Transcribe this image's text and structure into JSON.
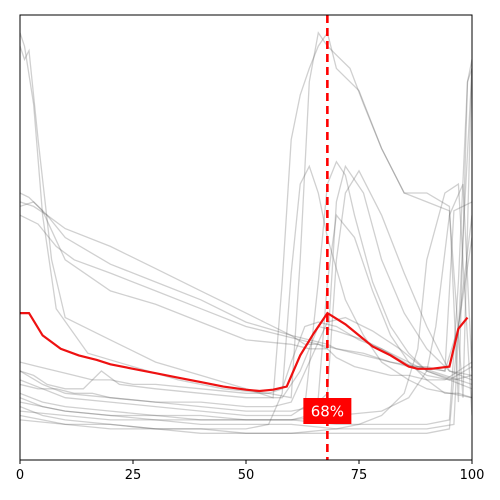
{
  "chart_data": {
    "type": "line",
    "title": "",
    "xlabel": "",
    "ylabel": "",
    "xlim": [
      0,
      100
    ],
    "ylim": [
      0,
      1
    ],
    "x_ticks": [
      "0",
      "25",
      "50",
      "75",
      "100"
    ],
    "y_ticks_visible": false,
    "grid": false,
    "legend": "none",
    "marker": {
      "x": 68,
      "label": "68%",
      "color": "#ff0000",
      "style": "dashed"
    },
    "highlight_series": {
      "color": "#ee1111",
      "x": [
        0,
        2,
        5,
        9,
        13,
        17,
        20,
        25,
        30,
        35,
        40,
        45,
        50,
        53,
        56,
        59,
        62,
        65,
        68,
        72,
        75,
        78,
        82,
        86,
        88,
        91,
        95,
        97,
        99
      ],
      "y": [
        0.33,
        0.33,
        0.28,
        0.25,
        0.235,
        0.225,
        0.215,
        0.205,
        0.195,
        0.185,
        0.175,
        0.165,
        0.158,
        0.155,
        0.158,
        0.165,
        0.235,
        0.285,
        0.33,
        0.305,
        0.28,
        0.255,
        0.235,
        0.21,
        0.205,
        0.205,
        0.21,
        0.295,
        0.32
      ]
    },
    "background_series_color": "#555555",
    "background_series": [
      {
        "x": [
          0,
          1,
          2,
          4,
          7,
          10,
          20,
          30,
          40,
          50,
          56,
          58,
          60,
          62,
          64,
          66,
          68,
          70,
          72,
          75,
          80,
          85,
          90,
          95,
          97,
          99,
          100
        ],
        "y": [
          0.93,
          0.9,
          0.92,
          0.72,
          0.45,
          0.32,
          0.27,
          0.22,
          0.19,
          0.16,
          0.14,
          0.4,
          0.72,
          0.82,
          0.88,
          0.93,
          0.96,
          0.88,
          0.86,
          0.83,
          0.7,
          0.6,
          0.6,
          0.57,
          0.13,
          0.85,
          0.88
        ]
      },
      {
        "x": [
          0,
          1,
          3,
          5,
          8,
          15,
          25,
          35,
          45,
          55,
          60,
          62,
          64,
          66,
          68,
          70,
          73,
          76,
          80,
          85,
          90,
          95,
          98,
          100
        ],
        "y": [
          0.96,
          0.93,
          0.8,
          0.55,
          0.34,
          0.24,
          0.21,
          0.18,
          0.16,
          0.15,
          0.14,
          0.45,
          0.85,
          0.96,
          0.93,
          0.91,
          0.88,
          0.8,
          0.7,
          0.6,
          0.58,
          0.56,
          0.14,
          0.9
        ]
      },
      {
        "x": [
          0,
          3,
          6,
          10,
          20,
          30,
          40,
          50,
          60,
          63,
          66,
          68,
          70,
          74,
          78,
          82,
          86,
          90,
          94,
          97,
          100
        ],
        "y": [
          0.58,
          0.57,
          0.55,
          0.52,
          0.48,
          0.43,
          0.38,
          0.33,
          0.28,
          0.26,
          0.26,
          0.25,
          0.23,
          0.21,
          0.2,
          0.19,
          0.19,
          0.18,
          0.18,
          0.2,
          0.22
        ]
      },
      {
        "x": [
          0,
          3,
          6,
          10,
          20,
          30,
          40,
          50,
          60,
          64,
          68,
          70,
          74,
          78,
          82,
          86,
          90,
          94,
          96,
          100
        ],
        "y": [
          0.57,
          0.58,
          0.55,
          0.5,
          0.44,
          0.4,
          0.36,
          0.31,
          0.28,
          0.27,
          0.26,
          0.25,
          0.24,
          0.23,
          0.22,
          0.21,
          0.21,
          0.2,
          0.56,
          0.58
        ]
      },
      {
        "x": [
          0,
          4,
          8,
          12,
          20,
          30,
          40,
          50,
          58,
          62,
          66,
          70,
          76,
          82,
          88,
          94,
          97,
          100
        ],
        "y": [
          0.55,
          0.53,
          0.48,
          0.45,
          0.42,
          0.38,
          0.34,
          0.3,
          0.28,
          0.27,
          0.26,
          0.25,
          0.24,
          0.22,
          0.21,
          0.2,
          0.3,
          0.55
        ]
      },
      {
        "x": [
          0,
          2,
          5,
          10,
          20,
          30,
          40,
          50,
          60,
          64,
          68,
          70,
          72,
          76,
          80,
          85,
          90,
          95,
          100
        ],
        "y": [
          0.6,
          0.59,
          0.56,
          0.45,
          0.38,
          0.35,
          0.31,
          0.27,
          0.26,
          0.25,
          0.25,
          0.58,
          0.66,
          0.6,
          0.45,
          0.33,
          0.25,
          0.2,
          0.19
        ]
      },
      {
        "x": [
          0,
          5,
          10,
          20,
          30,
          40,
          50,
          60,
          65,
          68,
          70,
          72,
          75,
          80,
          85,
          90,
          95,
          100
        ],
        "y": [
          0.2,
          0.17,
          0.15,
          0.14,
          0.13,
          0.12,
          0.11,
          0.11,
          0.12,
          0.15,
          0.45,
          0.6,
          0.65,
          0.55,
          0.42,
          0.3,
          0.2,
          0.18
        ]
      },
      {
        "x": [
          0,
          5,
          10,
          20,
          30,
          40,
          50,
          60,
          63,
          66,
          68,
          70,
          72,
          74,
          78,
          82,
          86,
          90,
          95,
          100
        ],
        "y": [
          0.18,
          0.16,
          0.14,
          0.13,
          0.12,
          0.11,
          0.1,
          0.1,
          0.12,
          0.4,
          0.62,
          0.67,
          0.64,
          0.55,
          0.4,
          0.3,
          0.24,
          0.2,
          0.18,
          0.16
        ]
      },
      {
        "x": [
          0,
          5,
          10,
          20,
          30,
          40,
          50,
          55,
          58,
          60,
          62,
          64,
          66,
          68,
          72,
          76,
          80,
          86,
          90,
          95,
          100
        ],
        "y": [
          0.12,
          0.1,
          0.09,
          0.08,
          0.07,
          0.07,
          0.07,
          0.08,
          0.15,
          0.42,
          0.62,
          0.66,
          0.6,
          0.5,
          0.36,
          0.28,
          0.22,
          0.18,
          0.16,
          0.15,
          0.14
        ]
      },
      {
        "x": [
          0,
          5,
          10,
          20,
          30,
          40,
          50,
          60,
          64,
          66,
          68,
          70,
          74,
          78,
          82,
          86,
          90,
          94,
          97,
          100
        ],
        "y": [
          0.15,
          0.13,
          0.12,
          0.11,
          0.1,
          0.1,
          0.09,
          0.09,
          0.1,
          0.14,
          0.4,
          0.55,
          0.5,
          0.38,
          0.28,
          0.22,
          0.18,
          0.15,
          0.15,
          0.14
        ]
      },
      {
        "x": [
          0,
          5,
          10,
          20,
          30,
          40,
          50,
          60,
          70,
          75,
          80,
          85,
          88,
          90,
          94,
          97,
          100
        ],
        "y": [
          0.1,
          0.09,
          0.08,
          0.07,
          0.07,
          0.06,
          0.06,
          0.06,
          0.07,
          0.08,
          0.1,
          0.15,
          0.25,
          0.45,
          0.6,
          0.62,
          0.1
        ]
      },
      {
        "x": [
          0,
          5,
          10,
          20,
          30,
          40,
          50,
          60,
          70,
          80,
          86,
          90,
          92,
          95,
          98,
          100
        ],
        "y": [
          0.14,
          0.12,
          0.11,
          0.1,
          0.09,
          0.09,
          0.09,
          0.09,
          0.1,
          0.11,
          0.14,
          0.2,
          0.3,
          0.55,
          0.62,
          0.2
        ]
      },
      {
        "x": [
          0,
          5,
          10,
          20,
          30,
          40,
          50,
          60,
          70,
          80,
          90,
          95,
          97,
          99,
          100
        ],
        "y": [
          0.13,
          0.12,
          0.11,
          0.1,
          0.1,
          0.09,
          0.09,
          0.09,
          0.08,
          0.08,
          0.08,
          0.09,
          0.4,
          0.85,
          0.9
        ]
      },
      {
        "x": [
          0,
          10,
          20,
          30,
          40,
          50,
          60,
          70,
          80,
          90,
          96,
          98,
          100
        ],
        "y": [
          0.11,
          0.1,
          0.09,
          0.09,
          0.08,
          0.08,
          0.08,
          0.07,
          0.07,
          0.07,
          0.08,
          0.5,
          0.88
        ]
      },
      {
        "x": [
          0,
          10,
          20,
          30,
          40,
          50,
          60,
          70,
          80,
          90,
          95,
          97,
          100
        ],
        "y": [
          0.09,
          0.08,
          0.08,
          0.07,
          0.07,
          0.06,
          0.06,
          0.06,
          0.06,
          0.06,
          0.07,
          0.3,
          0.5
        ]
      },
      {
        "x": [
          0,
          4,
          8,
          12,
          16,
          20,
          25,
          30,
          40,
          50,
          55,
          58,
          60,
          63,
          66,
          70,
          75,
          80,
          85,
          90,
          95,
          100
        ],
        "y": [
          0.22,
          0.21,
          0.2,
          0.19,
          0.18,
          0.18,
          0.17,
          0.17,
          0.16,
          0.15,
          0.15,
          0.16,
          0.22,
          0.3,
          0.31,
          0.3,
          0.27,
          0.25,
          0.22,
          0.19,
          0.18,
          0.21
        ]
      },
      {
        "x": [
          0,
          3,
          6,
          10,
          14,
          18,
          22,
          30,
          40,
          50,
          58,
          62,
          66,
          70,
          76,
          82,
          88,
          94,
          100
        ],
        "y": [
          0.2,
          0.19,
          0.17,
          0.16,
          0.16,
          0.2,
          0.17,
          0.16,
          0.15,
          0.14,
          0.14,
          0.2,
          0.3,
          0.29,
          0.27,
          0.24,
          0.21,
          0.19,
          0.17
        ]
      },
      {
        "x": [
          0,
          4,
          8,
          12,
          16,
          20,
          30,
          40,
          50,
          56,
          60,
          64,
          68,
          72,
          78,
          84,
          90,
          96,
          100
        ],
        "y": [
          0.17,
          0.16,
          0.16,
          0.15,
          0.15,
          0.14,
          0.13,
          0.13,
          0.12,
          0.12,
          0.13,
          0.22,
          0.31,
          0.32,
          0.29,
          0.25,
          0.2,
          0.18,
          0.19
        ]
      }
    ]
  }
}
